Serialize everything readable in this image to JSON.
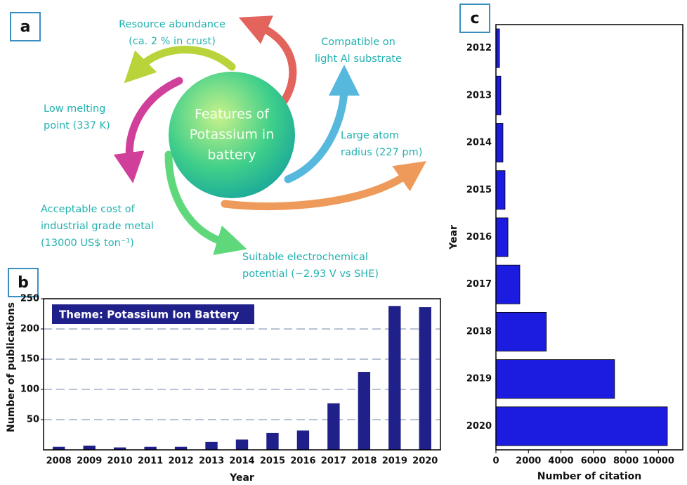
{
  "panel_labels": [
    "a",
    "b",
    "c"
  ],
  "diagram": {
    "center": [
      "Features of",
      "Potassium in",
      "battery"
    ],
    "labels": [
      {
        "lines": [
          "Resource abundance",
          "(ca. 2 % in crust)"
        ]
      },
      {
        "lines": [
          "Compatible on",
          "light Al substrate"
        ]
      },
      {
        "lines": [
          "Low melting",
          "point (337 K)"
        ]
      },
      {
        "lines": [
          "Large atom",
          "radius (227 pm)"
        ]
      },
      {
        "lines": [
          "Acceptable cost of",
          "industrial grade metal",
          "(13000 US$ ton⁻¹)"
        ]
      },
      {
        "lines": [
          "Suitable electrochemical",
          "potential (−2.93 V vs SHE)"
        ]
      }
    ]
  },
  "chart_data": [
    {
      "type": "bar",
      "annotation": "Theme: Potassium Ion Battery",
      "x_label": "Year",
      "y_label": "Number of publications",
      "categories": [
        "2008",
        "2009",
        "2010",
        "2011",
        "2012",
        "2013",
        "2014",
        "2015",
        "2016",
        "2017",
        "2018",
        "2019",
        "2020"
      ],
      "values": [
        5,
        7,
        4,
        5,
        5,
        13,
        17,
        28,
        32,
        77,
        129,
        238,
        236
      ],
      "color": "#20208a",
      "ylim": [
        0,
        250
      ],
      "yticks": [
        50,
        100,
        150,
        200,
        250
      ],
      "grid": true
    },
    {
      "type": "barh",
      "x_label": "Number of citation",
      "y_label": "Year",
      "categories": [
        "2012",
        "2013",
        "2014",
        "2015",
        "2016",
        "2017",
        "2018",
        "2019",
        "2020"
      ],
      "values": [
        220,
        300,
        430,
        560,
        740,
        1470,
        3100,
        7300,
        10550
      ],
      "color": "#1c1ce0",
      "xlim": [
        0,
        11500
      ],
      "xticks": [
        0,
        2000,
        4000,
        6000,
        8000,
        10000
      ],
      "grid": false
    }
  ]
}
